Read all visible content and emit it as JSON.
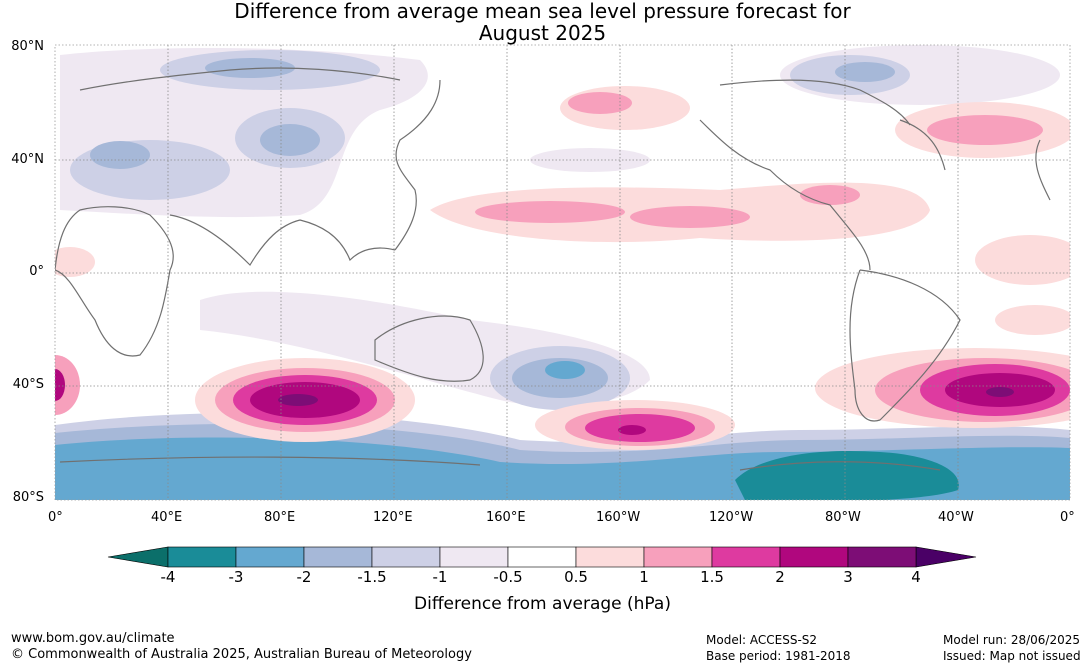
{
  "title_line1": "Difference from average mean sea level pressure forecast for",
  "title_line2": "August 2025",
  "lat_labels": [
    "80°N",
    "40°N",
    "0°",
    "40°S",
    "80°S"
  ],
  "lon_labels": [
    "0°",
    "40°E",
    "80°E",
    "120°E",
    "160°E",
    "160°W",
    "120°W",
    "80°W",
    "40°W",
    "0°"
  ],
  "colorbar": {
    "ticks": [
      "-4",
      "-3",
      "-2",
      "-1.5",
      "-1",
      "-0.5",
      "0.5",
      "1",
      "1.5",
      "2",
      "3",
      "4"
    ],
    "colors": [
      "#1a8c98",
      "#64a8d0",
      "#a6b8d8",
      "#cdd0e6",
      "#efe8f2",
      "#ffffff",
      "#fcdcdc",
      "#f7a0bc",
      "#de3aa0",
      "#b0077e",
      "#7d0d76"
    ],
    "low_extend_color": "#0b6f6a",
    "high_extend_color": "#4a0066",
    "title": "Difference from average (hPa)"
  },
  "footer": {
    "url": "www.bom.gov.au/climate",
    "copyright": "© Commonwealth of Australia 2025, Australian Bureau of Meteorology",
    "model": "Model: ACCESS-S2",
    "base_period": "Base period: 1981-2018",
    "model_run": "Model run: 28/06/2025",
    "issued": "Issued: Map not issued"
  }
}
